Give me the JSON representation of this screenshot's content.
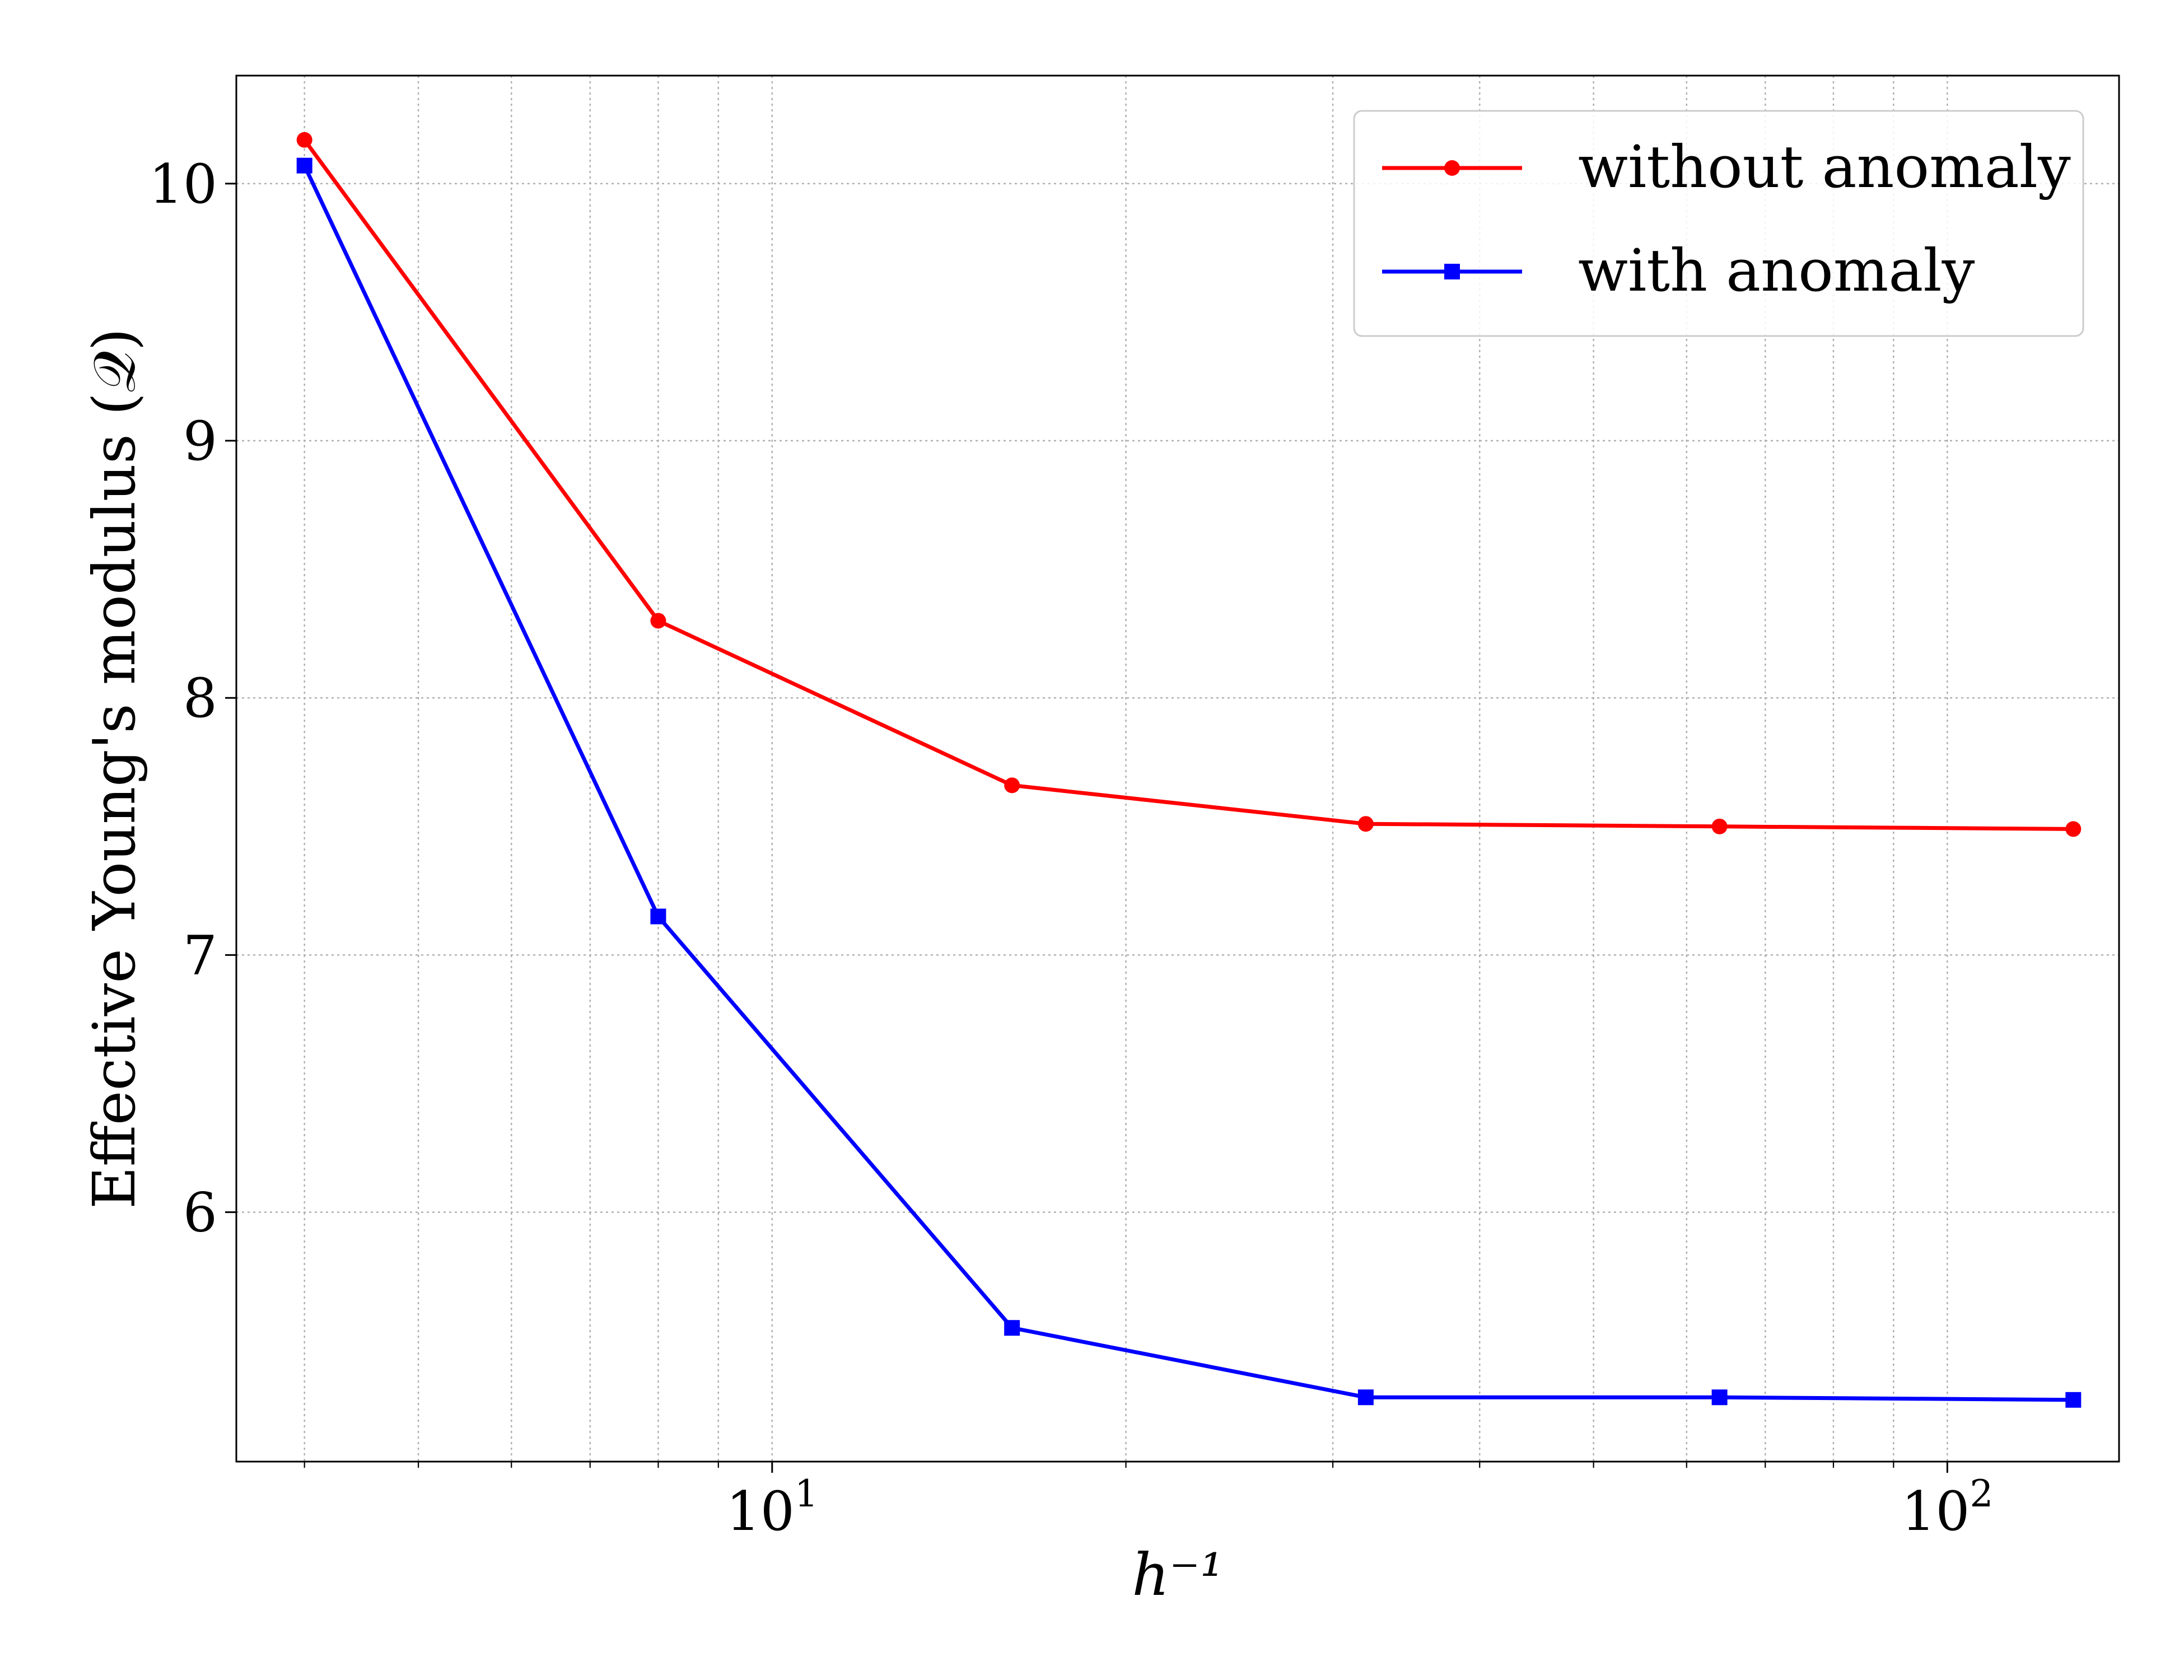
{
  "chart_data": {
    "type": "line",
    "xscale": "log",
    "xlabel": "h⁻¹",
    "ylabel": "Effective Young's modulus (𝒬)",
    "xlim": [
      3.5,
      140
    ],
    "ylim": [
      5.03,
      10.42
    ],
    "xticks": [
      {
        "value": 10,
        "base": "10",
        "exp": "1"
      },
      {
        "value": 100,
        "base": "10",
        "exp": "2"
      }
    ],
    "yticks": [
      6,
      7,
      8,
      9,
      10
    ],
    "grid": true,
    "legend_position": "upper right",
    "series": [
      {
        "name": "without anomaly",
        "color": "#ff0000",
        "marker": "circle",
        "x": [
          4,
          8,
          16,
          32,
          64,
          128
        ],
        "y": [
          10.17,
          8.3,
          7.66,
          7.51,
          7.5,
          7.49
        ]
      },
      {
        "name": "with anomaly",
        "color": "#0000ff",
        "marker": "square",
        "x": [
          4,
          8,
          16,
          32,
          64,
          128
        ],
        "y": [
          10.07,
          7.15,
          5.55,
          5.28,
          5.28,
          5.27
        ]
      }
    ]
  }
}
